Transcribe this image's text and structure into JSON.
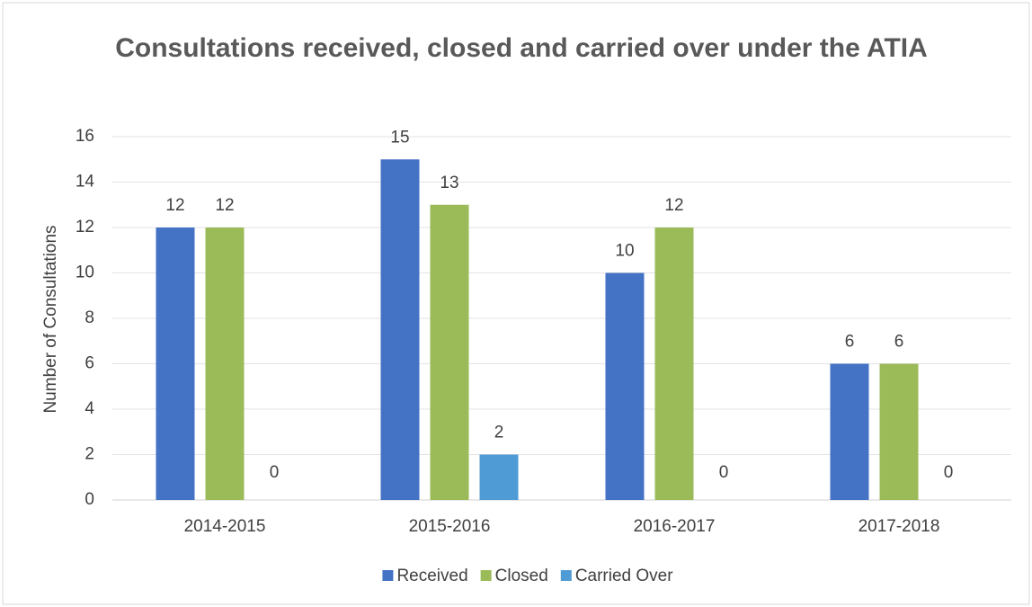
{
  "chart_data": {
    "type": "bar",
    "title": "Consultations received, closed and carried over under the ATIA",
    "y_label": "Number of Consultations",
    "categories": [
      "2014-2015",
      "2015-2016",
      "2016-2017",
      "2017-2018"
    ],
    "series": [
      {
        "name": "Received",
        "color": "#4472c4",
        "values": [
          12,
          15,
          10,
          6
        ]
      },
      {
        "name": "Closed",
        "color": "#9bbb59",
        "values": [
          12,
          13,
          12,
          6
        ]
      },
      {
        "name": "Carried Over",
        "color": "#4f9bd6",
        "values": [
          0,
          2,
          0,
          0
        ]
      }
    ],
    "ylim": [
      0,
      16
    ],
    "yticks": [
      0,
      2,
      4,
      6,
      8,
      10,
      12,
      14,
      16
    ],
    "grid": true,
    "legend": "bottom"
  }
}
